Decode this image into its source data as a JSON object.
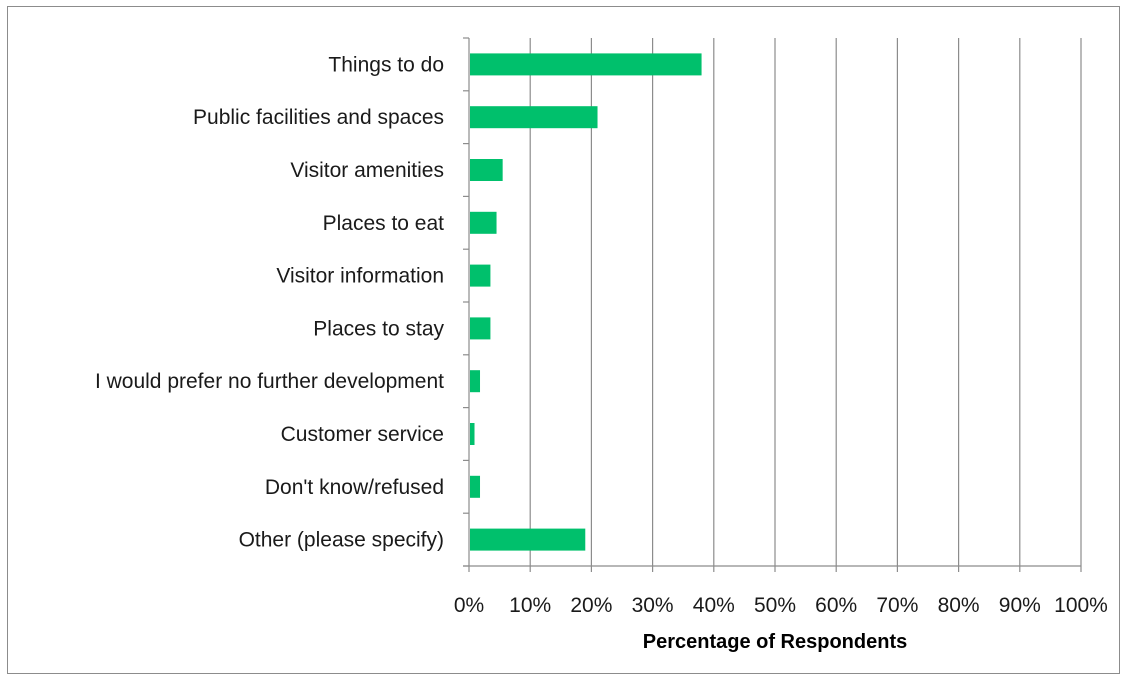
{
  "chart_data": {
    "type": "bar",
    "orientation": "horizontal",
    "title": "",
    "xlabel": "Percentage of Respondents",
    "ylabel": "",
    "categories": [
      "Things to do",
      "Public facilities and spaces",
      "Visitor amenities",
      "Places to eat",
      "Visitor information",
      "Places to stay",
      "I would prefer no further development",
      "Customer service",
      "Don't know/refused",
      "Other (please specify)"
    ],
    "values": [
      38,
      21,
      5.5,
      4.5,
      3.5,
      3.5,
      1.8,
      0.9,
      1.8,
      19
    ],
    "xlim": [
      0,
      100
    ],
    "x_ticks": [
      0,
      10,
      20,
      30,
      40,
      50,
      60,
      70,
      80,
      90,
      100
    ],
    "x_tick_labels": [
      "0%",
      "10%",
      "20%",
      "30%",
      "40%",
      "50%",
      "60%",
      "70%",
      "80%",
      "90%",
      "100%"
    ],
    "grid": "vertical",
    "legend": "none",
    "bar_color": "#00c06c",
    "grid_color": "#8c8c8c"
  }
}
